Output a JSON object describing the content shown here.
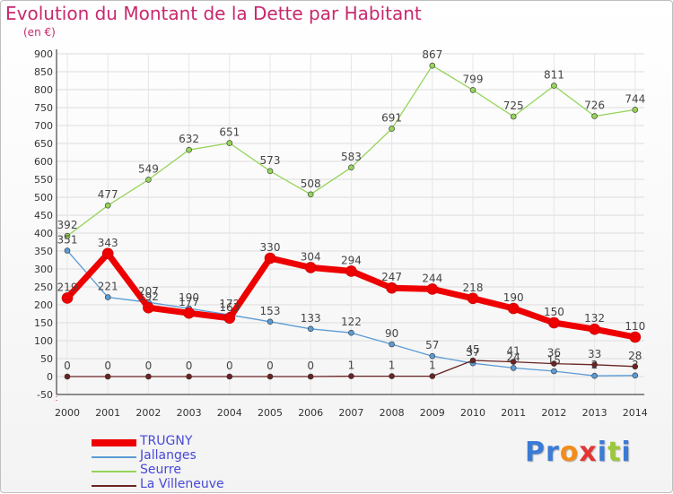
{
  "chart_data": {
    "type": "line",
    "title": "Evolution du Montant de la Dette par Habitant",
    "unit_label": "(en €)",
    "x": [
      "2000",
      "2001",
      "2002",
      "2003",
      "2004",
      "2005",
      "2006",
      "2007",
      "2008",
      "2009",
      "2010",
      "2011",
      "2012",
      "2013",
      "2014"
    ],
    "ylim": [
      -50,
      900
    ],
    "yticks": [
      -50,
      0,
      50,
      100,
      150,
      200,
      250,
      300,
      350,
      400,
      450,
      500,
      550,
      600,
      650,
      700,
      750,
      800,
      850,
      900
    ],
    "grid": true,
    "legend_position": "bottom-left",
    "series": [
      {
        "name": "TRUGNY",
        "color": "#ee0000",
        "emphasis": "thick",
        "values": [
          219,
          343,
          192,
          177,
          163,
          330,
          304,
          294,
          247,
          244,
          218,
          190,
          150,
          132,
          110
        ]
      },
      {
        "name": "Jallanges",
        "color": "#5b9bd5",
        "values": [
          351,
          221,
          207,
          190,
          172,
          153,
          133,
          122,
          90,
          57,
          37,
          24,
          15,
          2,
          3
        ]
      },
      {
        "name": "Seurre",
        "color": "#96d45a",
        "values": [
          392,
          477,
          549,
          632,
          651,
          573,
          508,
          583,
          691,
          867,
          799,
          725,
          811,
          726,
          744
        ]
      },
      {
        "name": "La Villeneuve",
        "color": "#6b2323",
        "values": [
          0,
          0,
          0,
          0,
          0,
          0,
          0,
          1,
          1,
          1,
          45,
          41,
          36,
          33,
          28
        ]
      }
    ]
  },
  "logo": {
    "text": "Proxiti",
    "letters": [
      "P",
      "r",
      "o",
      "x",
      "i",
      "t",
      "i"
    ],
    "colors": [
      "#3a7bd5",
      "#3a7bd5",
      "#f28c1a",
      "#e23636",
      "#3a7bd5",
      "#9bc83a",
      "#3a7bd5"
    ]
  }
}
